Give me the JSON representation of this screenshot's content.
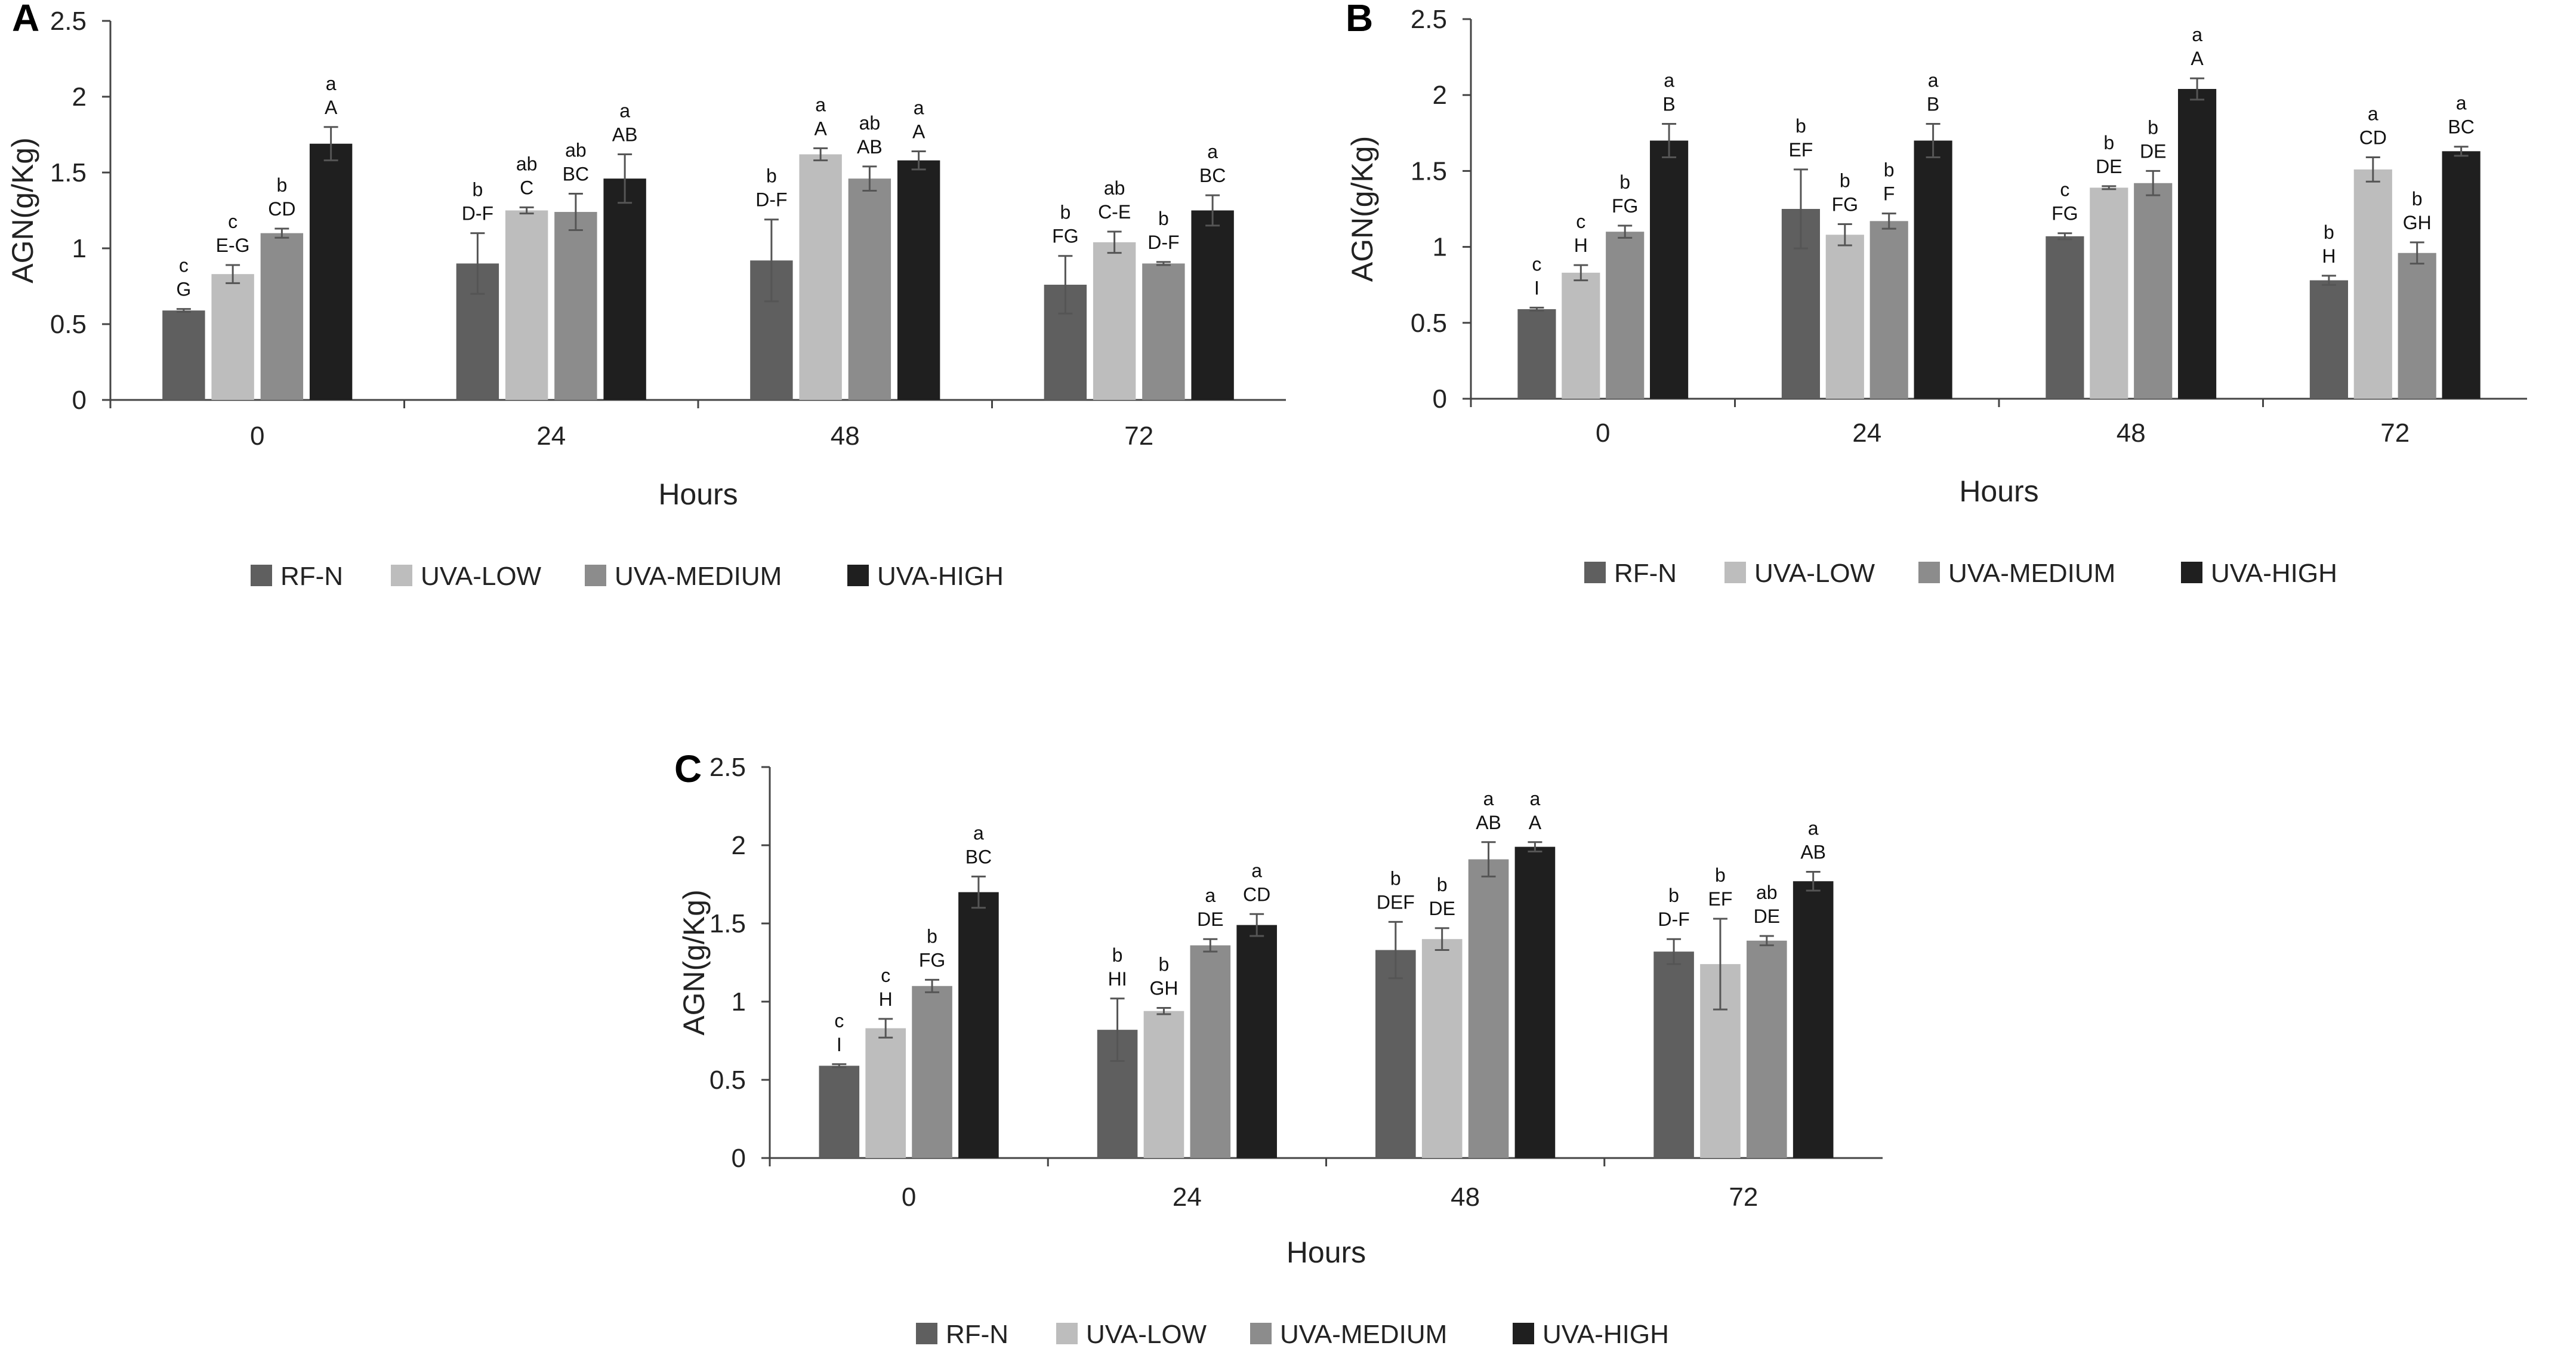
{
  "colors": {
    "RF-N": "#5f5f5f",
    "UVA-LOW": "#bdbdbd",
    "UVA-MEDIUM": "#8c8c8c",
    "UVA-HIGH": "#1f1f1f",
    "error_bar": "#555555",
    "axis": "#444444"
  },
  "chart_data": [
    {
      "panel": "A",
      "type": "bar",
      "xlabel": "Hours",
      "ylabel": "AGN(g/Kg)",
      "ylim": [
        0,
        2.5
      ],
      "yticks": [
        "0",
        "0.5",
        "1",
        "1.5",
        "2",
        "2.5"
      ],
      "categories": [
        "0",
        "24",
        "48",
        "72"
      ],
      "legend": [
        "RF-N",
        "UVA-LOW",
        "UVA-MEDIUM",
        "UVA-HIGH"
      ],
      "series": [
        {
          "name": "RF-N",
          "values": [
            0.59,
            0.9,
            0.92,
            0.76
          ],
          "errors": [
            0.01,
            0.2,
            0.27,
            0.19
          ],
          "labels_lower": [
            "c",
            "b",
            "b",
            "b"
          ],
          "labels_upper": [
            "G",
            "D-F",
            "D-F",
            "FG"
          ]
        },
        {
          "name": "UVA-LOW",
          "values": [
            0.83,
            1.25,
            1.62,
            1.04
          ],
          "errors": [
            0.06,
            0.02,
            0.04,
            0.07
          ],
          "labels_lower": [
            "c",
            "ab",
            "a",
            "ab"
          ],
          "labels_upper": [
            "E-G",
            "C",
            "A",
            "C-E"
          ]
        },
        {
          "name": "UVA-MEDIUM",
          "values": [
            1.1,
            1.24,
            1.46,
            0.9
          ],
          "errors": [
            0.03,
            0.12,
            0.08,
            0.01
          ],
          "labels_lower": [
            "b",
            "ab",
            "ab",
            "b"
          ],
          "labels_upper": [
            "CD",
            "BC",
            "AB",
            "D-F"
          ]
        },
        {
          "name": "UVA-HIGH",
          "values": [
            1.69,
            1.46,
            1.58,
            1.25
          ],
          "errors": [
            0.11,
            0.16,
            0.06,
            0.1
          ],
          "labels_lower": [
            "a",
            "a",
            "a",
            "a"
          ],
          "labels_upper": [
            "A",
            "AB",
            "A",
            "BC"
          ]
        }
      ]
    },
    {
      "panel": "B",
      "type": "bar",
      "xlabel": "Hours",
      "ylabel": "AGN(g/Kg)",
      "ylim": [
        0,
        2.5
      ],
      "yticks": [
        "0",
        "0.5",
        "1",
        "1.5",
        "2",
        "2.5"
      ],
      "categories": [
        "0",
        "24",
        "48",
        "72"
      ],
      "legend": [
        "RF-N",
        "UVA-LOW",
        "UVA-MEDIUM",
        "UVA-HIGH"
      ],
      "series": [
        {
          "name": "RF-N",
          "values": [
            0.59,
            1.25,
            1.07,
            0.78
          ],
          "errors": [
            0.01,
            0.26,
            0.02,
            0.03
          ],
          "labels_lower": [
            "c",
            "b",
            "c",
            "b"
          ],
          "labels_upper": [
            "I",
            "EF",
            "FG",
            "H"
          ]
        },
        {
          "name": "UVA-LOW",
          "values": [
            0.83,
            1.08,
            1.39,
            1.51
          ],
          "errors": [
            0.05,
            0.07,
            0.01,
            0.08
          ],
          "labels_lower": [
            "c",
            "b",
            "b",
            "a"
          ],
          "labels_upper": [
            "H",
            "FG",
            "DE",
            "CD"
          ]
        },
        {
          "name": "UVA-MEDIUM",
          "values": [
            1.1,
            1.17,
            1.42,
            0.96
          ],
          "errors": [
            0.04,
            0.05,
            0.08,
            0.07
          ],
          "labels_lower": [
            "b",
            "b",
            "b",
            "b"
          ],
          "labels_upper": [
            "FG",
            "F",
            "DE",
            "GH"
          ]
        },
        {
          "name": "UVA-HIGH",
          "values": [
            1.7,
            1.7,
            2.04,
            1.63
          ],
          "errors": [
            0.11,
            0.11,
            0.07,
            0.03
          ],
          "labels_lower": [
            "a",
            "a",
            "a",
            "a"
          ],
          "labels_upper": [
            "B",
            "B",
            "A",
            "BC"
          ]
        }
      ]
    },
    {
      "panel": "C",
      "type": "bar",
      "xlabel": "Hours",
      "ylabel": "AGN(g/Kg)",
      "ylim": [
        0,
        2.5
      ],
      "yticks": [
        "0",
        "0.5",
        "1",
        "1.5",
        "2",
        "2.5"
      ],
      "categories": [
        "0",
        "24",
        "48",
        "72"
      ],
      "legend": [
        "RF-N",
        "UVA-LOW",
        "UVA-MEDIUM",
        "UVA-HIGH"
      ],
      "series": [
        {
          "name": "RF-N",
          "values": [
            0.59,
            0.82,
            1.33,
            1.32
          ],
          "errors": [
            0.01,
            0.2,
            0.18,
            0.08
          ],
          "labels_lower": [
            "c",
            "b",
            "b",
            "b"
          ],
          "labels_upper": [
            "I",
            "HI",
            "DEF",
            "D-F"
          ]
        },
        {
          "name": "UVA-LOW",
          "values": [
            0.83,
            0.94,
            1.4,
            1.24
          ],
          "errors": [
            0.06,
            0.02,
            0.07,
            0.29
          ],
          "labels_lower": [
            "c",
            "b",
            "b",
            "b"
          ],
          "labels_upper": [
            "H",
            "GH",
            "DE",
            "EF"
          ]
        },
        {
          "name": "UVA-MEDIUM",
          "values": [
            1.1,
            1.36,
            1.91,
            1.39
          ],
          "errors": [
            0.04,
            0.04,
            0.11,
            0.03
          ],
          "labels_lower": [
            "b",
            "a",
            "a",
            "ab"
          ],
          "labels_upper": [
            "FG",
            "DE",
            "AB",
            "DE"
          ]
        },
        {
          "name": "UVA-HIGH",
          "values": [
            1.7,
            1.49,
            1.99,
            1.77
          ],
          "errors": [
            0.1,
            0.07,
            0.03,
            0.06
          ],
          "labels_lower": [
            "a",
            "a",
            "a",
            "a"
          ],
          "labels_upper": [
            "BC",
            "CD",
            "A",
            "AB"
          ]
        }
      ]
    }
  ]
}
